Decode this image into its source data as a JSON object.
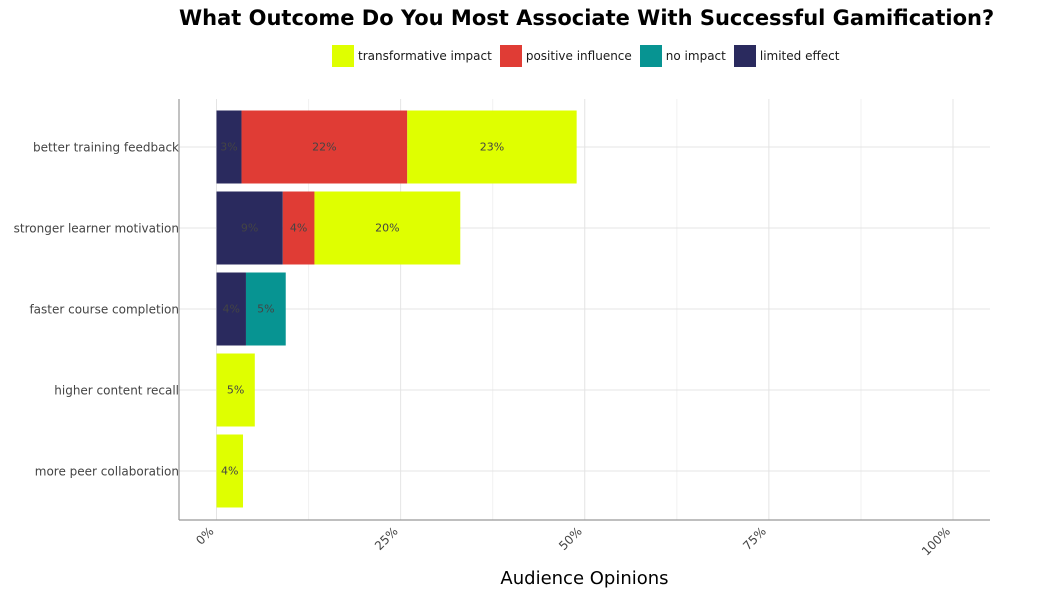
{
  "chart_data": {
    "type": "bar",
    "orientation": "horizontal",
    "stacked": true,
    "title": "What Outcome Do You Most Associate With Successful Gamification?",
    "xlabel": "Audience Opinions",
    "ylabel": "",
    "xlim": [
      0,
      105
    ],
    "x_ticks": [
      0,
      25,
      50,
      75,
      100
    ],
    "x_tick_labels": [
      "0%",
      "25%",
      "50%",
      "75%",
      "100%"
    ],
    "grid": true,
    "legend_position": "top",
    "categories": [
      "better training feedback",
      "stronger learner motivation",
      "faster course completion",
      "higher content recall",
      "more peer collaboration"
    ],
    "series": [
      {
        "name": "limited effect",
        "color": "#2a2a5e",
        "values": [
          3.4,
          9,
          4,
          0,
          0
        ],
        "labels": [
          "3%",
          "9%",
          "4%",
          "",
          ""
        ]
      },
      {
        "name": "positive influence",
        "color": "#e03c35",
        "values": [
          22.5,
          4.3,
          0,
          0,
          0
        ],
        "labels": [
          "22%",
          "4%",
          "",
          "",
          ""
        ]
      },
      {
        "name": "no impact",
        "color": "#079492",
        "values": [
          0,
          0,
          5.4,
          0,
          0
        ],
        "labels": [
          "",
          "",
          "5%",
          "",
          ""
        ]
      },
      {
        "name": "transformative impact",
        "color": "#dfff00",
        "values": [
          23.0,
          19.8,
          0,
          5.2,
          3.6
        ],
        "labels": [
          "23%",
          "20%",
          "",
          "5%",
          "4%"
        ]
      }
    ],
    "legend_order": [
      "transformative impact",
      "positive influence",
      "no impact",
      "limited effect"
    ]
  }
}
